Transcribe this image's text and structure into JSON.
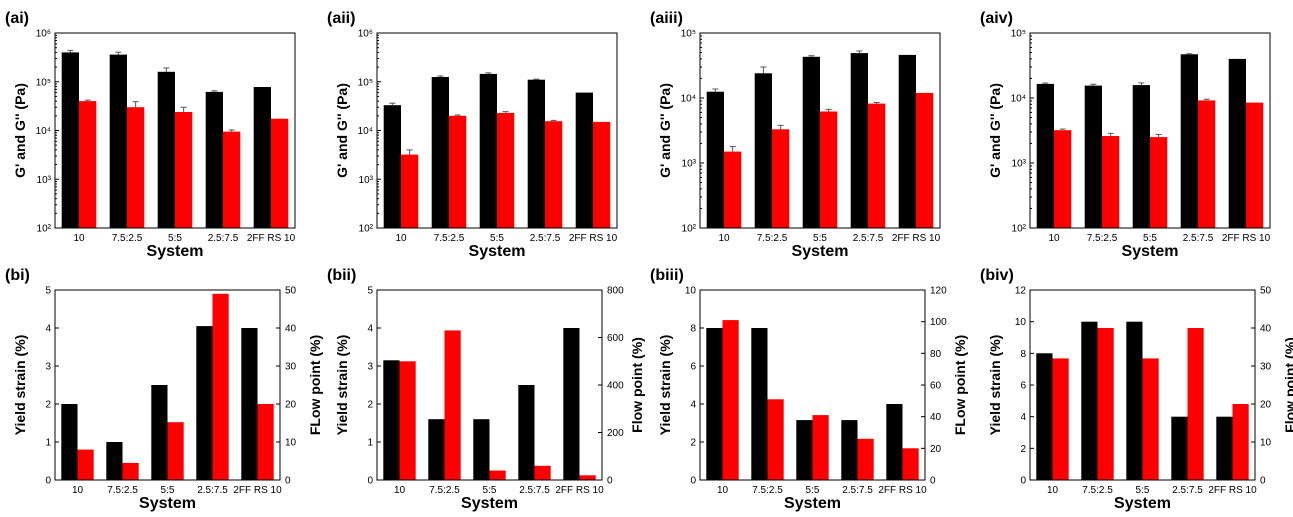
{
  "colors": {
    "black_series": "#000000",
    "red_series": "#ff0000"
  },
  "chart_data": [
    {
      "panel": "(ai)",
      "type": "bar",
      "yscale": "log",
      "categories": [
        "10",
        "7.5:2.5",
        "5:5",
        "2.5:7.5",
        "2FF RS 10"
      ],
      "series": [
        {
          "values": [
            400000,
            360000,
            160000,
            62000,
            78000
          ],
          "errors": [
            1.1,
            1.12,
            1.2,
            1.05,
            1.0
          ],
          "color": "#000000"
        },
        {
          "values": [
            40000,
            30000,
            24000,
            9500,
            17500
          ],
          "errors": [
            1.05,
            1.3,
            1.25,
            1.08,
            1.0
          ],
          "color": "#ff0000"
        }
      ],
      "ylim": [
        100,
        1000000
      ],
      "yticks": [
        "10²",
        "10³",
        "10⁴",
        "10⁵",
        "10⁶"
      ],
      "ylabel": "G' and G'' (Pa)",
      "xlabel": "System"
    },
    {
      "panel": "(aii)",
      "type": "bar",
      "yscale": "log",
      "categories": [
        "10",
        "7.5:2.5",
        "5:5",
        "2.5:7.5",
        "2FF RS 10"
      ],
      "series": [
        {
          "values": [
            33000,
            125000,
            145000,
            110000,
            60000
          ],
          "errors": [
            1.1,
            1.05,
            1.05,
            1.03,
            1.0
          ],
          "color": "#000000"
        },
        {
          "values": [
            3200,
            20000,
            23000,
            15500,
            15000
          ],
          "errors": [
            1.25,
            1.04,
            1.06,
            1.04,
            1.0
          ],
          "color": "#ff0000"
        }
      ],
      "ylim": [
        100,
        1000000
      ],
      "yticks": [
        "10²",
        "10³",
        "10⁴",
        "10⁵",
        "10⁶"
      ],
      "ylabel": "G' and G'' (Pa)",
      "xlabel": "System"
    },
    {
      "panel": "(aiii)",
      "type": "bar",
      "yscale": "log",
      "categories": [
        "10",
        "7.5:2.5",
        "5:5",
        "2.5:7.5",
        "2FF RS 10"
      ],
      "series": [
        {
          "values": [
            12500,
            24000,
            43000,
            49000,
            46000
          ],
          "errors": [
            1.1,
            1.25,
            1.04,
            1.08,
            1.0
          ],
          "color": "#000000"
        },
        {
          "values": [
            1500,
            3300,
            6200,
            8200,
            12000
          ],
          "errors": [
            1.2,
            1.15,
            1.08,
            1.04,
            1.0
          ],
          "color": "#ff0000"
        }
      ],
      "ylim": [
        100,
        100000
      ],
      "yticks": [
        "10²",
        "10³",
        "10⁴",
        "10⁵"
      ],
      "ylabel": "G' and G'' (Pa)",
      "xlabel": "System"
    },
    {
      "panel": "(aiv)",
      "type": "bar",
      "yscale": "log",
      "categories": [
        "10",
        "7.5:2.5",
        "5:5",
        "2.5:7.5",
        "2FF RS 10"
      ],
      "series": [
        {
          "values": [
            16500,
            15500,
            15800,
            47000,
            40000
          ],
          "errors": [
            1.03,
            1.05,
            1.08,
            1.02,
            1.0
          ],
          "color": "#000000"
        },
        {
          "values": [
            3200,
            2600,
            2500,
            9200,
            8500
          ],
          "errors": [
            1.04,
            1.1,
            1.1,
            1.04,
            1.0
          ],
          "color": "#ff0000"
        }
      ],
      "ylim": [
        100,
        100000
      ],
      "yticks": [
        "10²",
        "10³",
        "10⁴",
        "10⁵"
      ],
      "ylabel": "G' and G'' (Pa)",
      "xlabel": "System"
    },
    {
      "panel": "(bi)",
      "type": "bar",
      "yscale": "linear",
      "categories": [
        "10",
        "7.5:2.5",
        "5:5",
        "2.5:7.5",
        "2FF RS 10"
      ],
      "series": [
        {
          "values": [
            2,
            1,
            2.5,
            4.05,
            4
          ],
          "axis": "left",
          "color": "#000000"
        },
        {
          "values": [
            8,
            4.5,
            15.2,
            49,
            20
          ],
          "axis": "right",
          "color": "#ff0000"
        }
      ],
      "ylim": [
        0,
        5
      ],
      "yticks": [
        "0",
        "1",
        "2",
        "3",
        "4",
        "5"
      ],
      "y2lim": [
        0,
        50
      ],
      "y2ticks": [
        "0",
        "10",
        "20",
        "30",
        "40",
        "50"
      ],
      "ylabel": "Yield strain (%)",
      "y2label": "FLow point (%)",
      "xlabel": "System"
    },
    {
      "panel": "(bii)",
      "type": "bar",
      "yscale": "linear",
      "categories": [
        "10",
        "7.5:2.5",
        "5:5",
        "2.5:7.5",
        "2FF RS 10"
      ],
      "series": [
        {
          "values": [
            3.15,
            1.6,
            1.6,
            2.5,
            4
          ],
          "axis": "left",
          "color": "#000000"
        },
        {
          "values": [
            500,
            630,
            40,
            60,
            20
          ],
          "axis": "right",
          "color": "#ff0000"
        }
      ],
      "ylim": [
        0,
        5
      ],
      "yticks": [
        "0",
        "1",
        "2",
        "3",
        "4",
        "5"
      ],
      "y2lim": [
        0,
        800
      ],
      "y2ticks": [
        "0",
        "200",
        "400",
        "600",
        "800"
      ],
      "ylabel": "Yield strain (%)",
      "y2label": "Flow point (%)",
      "xlabel": "System"
    },
    {
      "panel": "(biii)",
      "type": "bar",
      "yscale": "linear",
      "categories": [
        "10",
        "7.5:2.5",
        "5:5",
        "2.5:7.5",
        "2FF RS 10"
      ],
      "series": [
        {
          "values": [
            8,
            8,
            3.15,
            3.15,
            4
          ],
          "axis": "left",
          "color": "#000000"
        },
        {
          "values": [
            101,
            51,
            41,
            26,
            20
          ],
          "axis": "right",
          "color": "#ff0000"
        }
      ],
      "ylim": [
        0,
        10
      ],
      "yticks": [
        "0",
        "2",
        "4",
        "6",
        "8",
        "10"
      ],
      "y2lim": [
        0,
        120
      ],
      "y2ticks": [
        "0",
        "20",
        "40",
        "60",
        "80",
        "100",
        "120"
      ],
      "ylabel": "Yield strain (%)",
      "y2label": "FLow point (%)",
      "xlabel": "System"
    },
    {
      "panel": "(biv)",
      "type": "bar",
      "yscale": "linear",
      "categories": [
        "10",
        "7.5:2.5",
        "5:5",
        "2.5:7.5",
        "2FF RS 10"
      ],
      "series": [
        {
          "values": [
            8,
            10,
            10,
            4,
            4
          ],
          "axis": "left",
          "color": "#000000"
        },
        {
          "values": [
            32,
            40,
            32,
            40,
            20
          ],
          "axis": "right",
          "color": "#ff0000"
        }
      ],
      "ylim": [
        0,
        12
      ],
      "yticks": [
        "0",
        "2",
        "4",
        "6",
        "8",
        "10",
        "12"
      ],
      "y2lim": [
        0,
        50
      ],
      "y2ticks": [
        "0",
        "10",
        "20",
        "30",
        "40",
        "50"
      ],
      "ylabel": "Yield strain (%)",
      "y2label": "Flow point (%)",
      "xlabel": "System"
    }
  ]
}
